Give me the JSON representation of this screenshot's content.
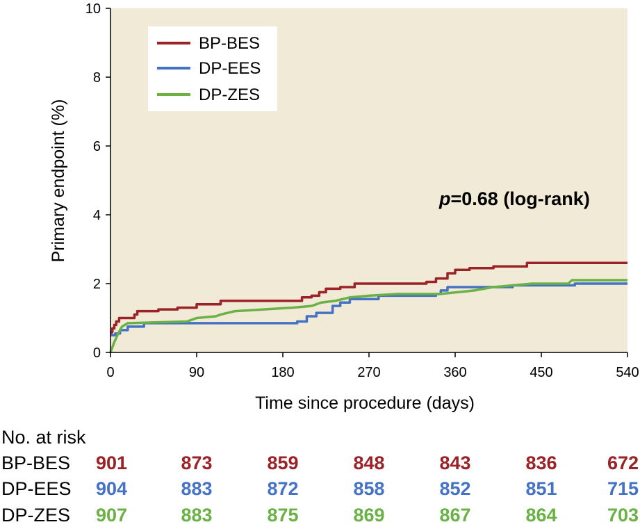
{
  "chart_data": {
    "type": "line",
    "title": "",
    "xlabel": "Time since procedure (days)",
    "ylabel": "Primary endpoint (%)",
    "xlim": [
      0,
      540
    ],
    "ylim": [
      0,
      10
    ],
    "x_ticks": [
      0,
      90,
      180,
      270,
      360,
      450,
      540
    ],
    "y_ticks": [
      0,
      2,
      4,
      6,
      8,
      10
    ],
    "grid": false,
    "plot_background": "#f0ead6",
    "legend_position": "top-left",
    "annotation": {
      "p_label": "p",
      "text": "=0.68 (log-rank)"
    },
    "series": [
      {
        "name": "BP-BES",
        "color": "#9b2226",
        "step": true,
        "points": [
          [
            0,
            0.5
          ],
          [
            1,
            0.6
          ],
          [
            2,
            0.7
          ],
          [
            4,
            0.8
          ],
          [
            6,
            0.9
          ],
          [
            9,
            1.0
          ],
          [
            25,
            1.1
          ],
          [
            28,
            1.2
          ],
          [
            50,
            1.25
          ],
          [
            70,
            1.3
          ],
          [
            90,
            1.4
          ],
          [
            115,
            1.5
          ],
          [
            200,
            1.6
          ],
          [
            210,
            1.65
          ],
          [
            218,
            1.75
          ],
          [
            225,
            1.85
          ],
          [
            240,
            1.9
          ],
          [
            255,
            2.0
          ],
          [
            330,
            2.05
          ],
          [
            340,
            2.15
          ],
          [
            352,
            2.3
          ],
          [
            360,
            2.4
          ],
          [
            375,
            2.45
          ],
          [
            400,
            2.5
          ],
          [
            435,
            2.6
          ],
          [
            540,
            2.6
          ]
        ]
      },
      {
        "name": "DP-EES",
        "color": "#4472c4",
        "step": true,
        "points": [
          [
            0,
            0.5
          ],
          [
            5,
            0.55
          ],
          [
            10,
            0.65
          ],
          [
            18,
            0.75
          ],
          [
            35,
            0.85
          ],
          [
            195,
            0.9
          ],
          [
            205,
            1.05
          ],
          [
            215,
            1.15
          ],
          [
            232,
            1.35
          ],
          [
            240,
            1.45
          ],
          [
            250,
            1.55
          ],
          [
            280,
            1.65
          ],
          [
            340,
            1.7
          ],
          [
            345,
            1.8
          ],
          [
            352,
            1.9
          ],
          [
            390,
            1.9
          ],
          [
            420,
            1.95
          ],
          [
            485,
            2.0
          ],
          [
            540,
            2.0
          ]
        ]
      },
      {
        "name": "DP-ZES",
        "color": "#6ab245",
        "step": false,
        "points": [
          [
            0,
            0
          ],
          [
            4,
            0.3
          ],
          [
            8,
            0.55
          ],
          [
            12,
            0.75
          ],
          [
            18,
            0.85
          ],
          [
            80,
            0.9
          ],
          [
            90,
            1.0
          ],
          [
            110,
            1.05
          ],
          [
            115,
            1.1
          ],
          [
            130,
            1.2
          ],
          [
            190,
            1.3
          ],
          [
            210,
            1.35
          ],
          [
            220,
            1.45
          ],
          [
            235,
            1.5
          ],
          [
            250,
            1.6
          ],
          [
            270,
            1.65
          ],
          [
            300,
            1.7
          ],
          [
            345,
            1.7
          ],
          [
            380,
            1.8
          ],
          [
            400,
            1.9
          ],
          [
            440,
            2.0
          ],
          [
            478,
            2.0
          ],
          [
            482,
            2.1
          ],
          [
            540,
            2.1
          ]
        ]
      }
    ]
  },
  "risk_table": {
    "title": "No. at risk",
    "rows": [
      {
        "label": "BP-BES",
        "color": "#9b2226",
        "values": [
          901,
          873,
          859,
          848,
          843,
          836,
          672
        ]
      },
      {
        "label": "DP-EES",
        "color": "#4472c4",
        "values": [
          904,
          883,
          872,
          858,
          852,
          851,
          715
        ]
      },
      {
        "label": "DP-ZES",
        "color": "#6ab245",
        "values": [
          907,
          883,
          875,
          869,
          867,
          864,
          703
        ]
      }
    ]
  }
}
